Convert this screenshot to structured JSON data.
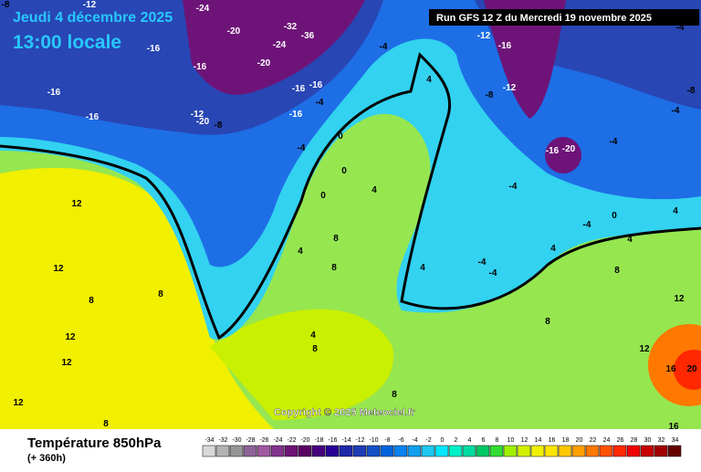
{
  "header": {
    "date": "Jeudi 4 décembre 2025",
    "time": "13:00 locale",
    "run": "Run GFS 12 Z du Mercredi 19 novembre 2025"
  },
  "map": {
    "copyright": "Copyright © 2025 Meteociel.fr",
    "labels": [
      -8,
      -12,
      -24,
      -20,
      -24,
      -32,
      -36,
      -16,
      -16,
      -20,
      -16,
      -16,
      -12,
      -20,
      -8,
      -16,
      -16,
      -4,
      -16,
      -4,
      4,
      -12,
      -16,
      -8,
      -12,
      -16,
      -20,
      -4,
      -4,
      -4,
      -8,
      -4,
      0,
      -4,
      0,
      0,
      4,
      4,
      8,
      8,
      12,
      12,
      8,
      8,
      12,
      12,
      12,
      8,
      4,
      8,
      8,
      4,
      -4,
      -4,
      4,
      -4,
      0,
      4,
      8,
      8,
      12,
      12,
      16,
      20,
      16,
      4
    ]
  },
  "footer": {
    "title": "Température 850hPa",
    "subtitle": "(+ 360h)"
  },
  "scale": {
    "ticks": [
      -34,
      -32,
      -30,
      -28,
      -26,
      -24,
      -22,
      -20,
      -18,
      -16,
      -14,
      -12,
      -10,
      -8,
      -6,
      -4,
      -2,
      0,
      2,
      4,
      6,
      8,
      10,
      12,
      14,
      16,
      18,
      20,
      22,
      24,
      26,
      28,
      30,
      32,
      34
    ],
    "colors": [
      "#d8d8d8",
      "#b4b4b4",
      "#969696",
      "#8c6496",
      "#a05aa0",
      "#82328c",
      "#6e1478",
      "#5a0064",
      "#46007d",
      "#280096",
      "#1e28aa",
      "#1e3cb4",
      "#1450c8",
      "#0064dc",
      "#0a82f0",
      "#14a0f0",
      "#1ec8f0",
      "#00e6ff",
      "#00f0c8",
      "#00dca0",
      "#00c864",
      "#32dc32",
      "#a0f000",
      "#d2f000",
      "#f0f000",
      "#ffe600",
      "#ffc800",
      "#ffa000",
      "#ff7800",
      "#ff5000",
      "#ff2800",
      "#f00000",
      "#c80000",
      "#a00000",
      "#640000"
    ]
  }
}
